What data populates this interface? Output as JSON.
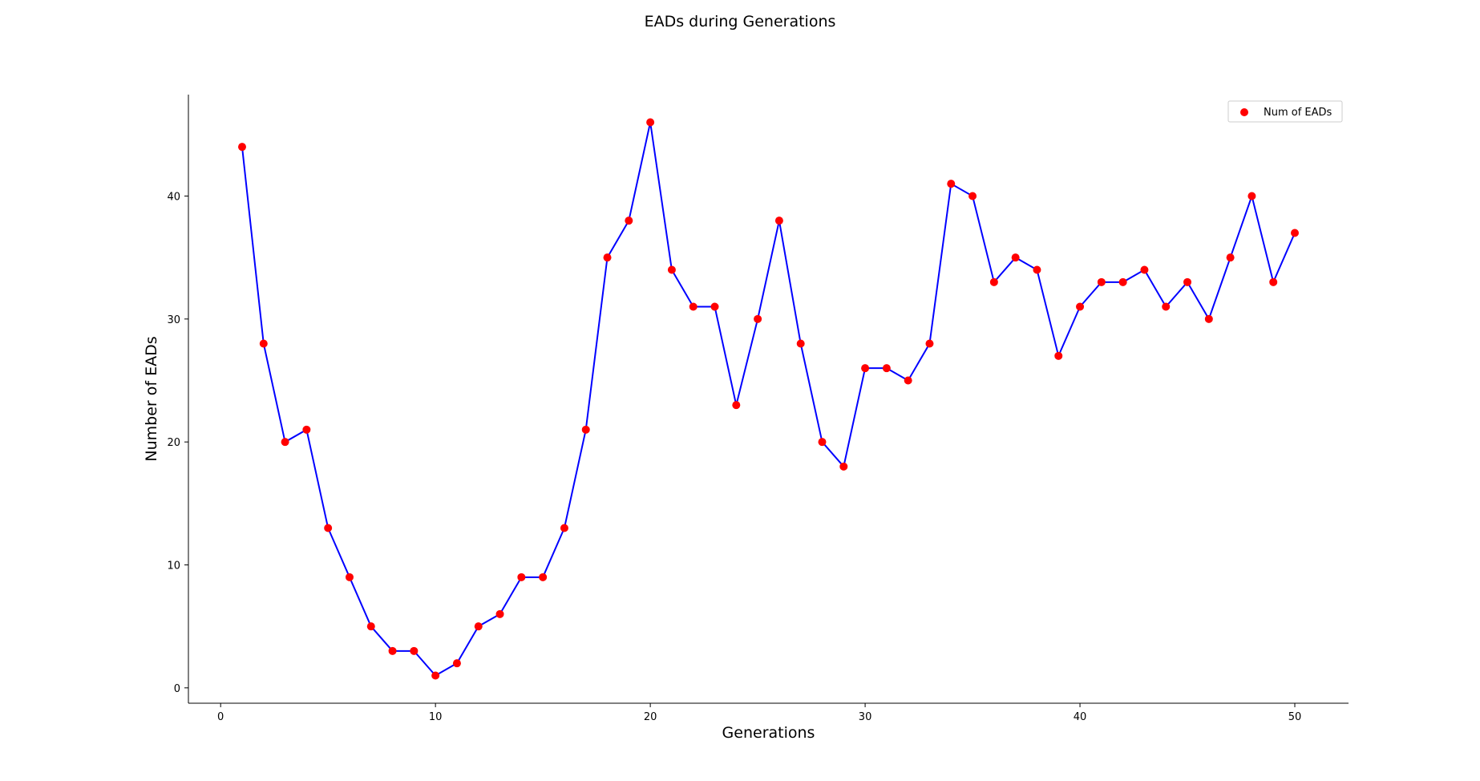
{
  "chart_data": {
    "type": "line",
    "title": "EADs during Generations",
    "xlabel": "Generations",
    "ylabel": "Number of EADs",
    "xlim": [
      -1.5,
      52.5
    ],
    "ylim": [
      -1.25,
      48.25
    ],
    "xticks": [
      0,
      10,
      20,
      30,
      40,
      50
    ],
    "yticks": [
      0,
      10,
      20,
      30,
      40
    ],
    "grid": false,
    "legend": {
      "placement": "top-right"
    },
    "series": [
      {
        "name": "Num of EADs",
        "line_color": "#0000ff",
        "marker_color": "#ff0000",
        "x": [
          1,
          2,
          3,
          4,
          5,
          6,
          7,
          8,
          9,
          10,
          11,
          12,
          13,
          14,
          15,
          16,
          17,
          18,
          19,
          20,
          21,
          22,
          23,
          24,
          25,
          26,
          27,
          28,
          29,
          30,
          31,
          32,
          33,
          34,
          35,
          36,
          37,
          38,
          39,
          40,
          41,
          42,
          43,
          44,
          45,
          46,
          47,
          48,
          49,
          50
        ],
        "y": [
          44,
          28,
          20,
          21,
          13,
          9,
          5,
          3,
          3,
          1,
          2,
          5,
          6,
          9,
          9,
          13,
          21,
          35,
          38,
          46,
          34,
          31,
          31,
          23,
          30,
          38,
          28,
          20,
          18,
          26,
          26,
          25,
          28,
          41,
          40,
          33,
          35,
          34,
          27,
          31,
          33,
          33,
          34,
          31,
          33,
          30,
          35,
          40,
          33,
          37
        ]
      }
    ]
  }
}
